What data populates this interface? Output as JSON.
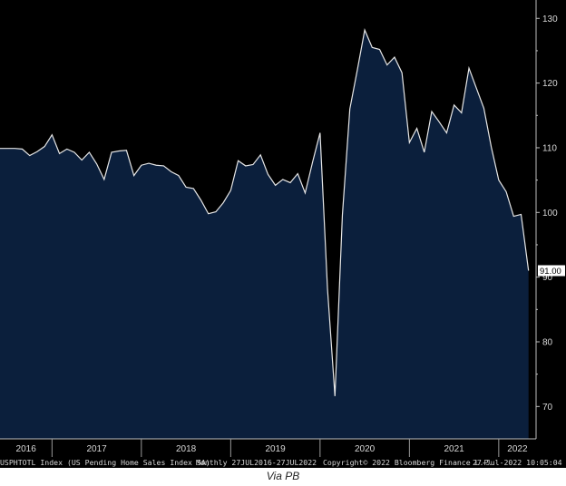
{
  "chart_data": {
    "type": "area",
    "x_tick_labels": [
      "2016",
      "2017",
      "2018",
      "2019",
      "2020",
      "2021",
      "2022"
    ],
    "y_tick_labels": [
      "130",
      "120",
      "110",
      "100",
      "90",
      "80",
      "70"
    ],
    "ylim": [
      65,
      132
    ],
    "grid": false,
    "last_value_label": "91.00",
    "colors": {
      "background": "#000000",
      "area_fill": "#0b1f3c",
      "line": "#e6e6e6",
      "text": "#d8d8d8",
      "last_value_bg": "#ffffff"
    },
    "series": [
      {
        "values": [
          {
            "x": "2016-07",
            "y": 109.9
          },
          {
            "x": "2016-08",
            "y": 109.9
          },
          {
            "x": "2016-09",
            "y": 109.8
          },
          {
            "x": "2016-10",
            "y": 108.8
          },
          {
            "x": "2016-11",
            "y": 109.4
          },
          {
            "x": "2016-12",
            "y": 110.2
          },
          {
            "x": "2017-01",
            "y": 112.0
          },
          {
            "x": "2017-02",
            "y": 109.1
          },
          {
            "x": "2017-03",
            "y": 109.8
          },
          {
            "x": "2017-04",
            "y": 109.3
          },
          {
            "x": "2017-05",
            "y": 108.1
          },
          {
            "x": "2017-06",
            "y": 109.3
          },
          {
            "x": "2017-07",
            "y": 107.5
          },
          {
            "x": "2017-08",
            "y": 105.1
          },
          {
            "x": "2017-09",
            "y": 109.3
          },
          {
            "x": "2017-10",
            "y": 109.5
          },
          {
            "x": "2017-11",
            "y": 109.6
          },
          {
            "x": "2017-12",
            "y": 105.7
          },
          {
            "x": "2018-01",
            "y": 107.3
          },
          {
            "x": "2018-02",
            "y": 107.6
          },
          {
            "x": "2018-03",
            "y": 107.3
          },
          {
            "x": "2018-04",
            "y": 107.2
          },
          {
            "x": "2018-05",
            "y": 106.3
          },
          {
            "x": "2018-06",
            "y": 105.7
          },
          {
            "x": "2018-07",
            "y": 103.9
          },
          {
            "x": "2018-08",
            "y": 103.7
          },
          {
            "x": "2018-09",
            "y": 101.9
          },
          {
            "x": "2018-10",
            "y": 99.8
          },
          {
            "x": "2018-11",
            "y": 100.1
          },
          {
            "x": "2018-12",
            "y": 101.5
          },
          {
            "x": "2019-01",
            "y": 103.4
          },
          {
            "x": "2019-02",
            "y": 108.0
          },
          {
            "x": "2019-03",
            "y": 107.2
          },
          {
            "x": "2019-04",
            "y": 107.4
          },
          {
            "x": "2019-05",
            "y": 108.9
          },
          {
            "x": "2019-06",
            "y": 105.9
          },
          {
            "x": "2019-07",
            "y": 104.2
          },
          {
            "x": "2019-08",
            "y": 105.1
          },
          {
            "x": "2019-09",
            "y": 104.6
          },
          {
            "x": "2019-10",
            "y": 106.0
          },
          {
            "x": "2019-11",
            "y": 103.0
          },
          {
            "x": "2019-12",
            "y": 107.8
          },
          {
            "x": "2020-01",
            "y": 112.3
          },
          {
            "x": "2020-02",
            "y": 88.2
          },
          {
            "x": "2020-03",
            "y": 71.6
          },
          {
            "x": "2020-04",
            "y": 99.6
          },
          {
            "x": "2020-05",
            "y": 116.0
          },
          {
            "x": "2020-06",
            "y": 122.0
          },
          {
            "x": "2020-07",
            "y": 128.2
          },
          {
            "x": "2020-08",
            "y": 125.5
          },
          {
            "x": "2020-09",
            "y": 125.2
          },
          {
            "x": "2020-10",
            "y": 122.8
          },
          {
            "x": "2020-11",
            "y": 124.0
          },
          {
            "x": "2020-12",
            "y": 121.6
          },
          {
            "x": "2021-01",
            "y": 110.8
          },
          {
            "x": "2021-02",
            "y": 113.0
          },
          {
            "x": "2021-03",
            "y": 109.3
          },
          {
            "x": "2021-04",
            "y": 115.6
          },
          {
            "x": "2021-05",
            "y": 114.0
          },
          {
            "x": "2021-06",
            "y": 112.3
          },
          {
            "x": "2021-07",
            "y": 116.6
          },
          {
            "x": "2021-08",
            "y": 115.4
          },
          {
            "x": "2021-09",
            "y": 122.3
          },
          {
            "x": "2021-10",
            "y": 119.2
          },
          {
            "x": "2021-11",
            "y": 116.1
          },
          {
            "x": "2021-12",
            "y": 110.1
          },
          {
            "x": "2022-01",
            "y": 105.0
          },
          {
            "x": "2022-02",
            "y": 103.2
          },
          {
            "x": "2022-03",
            "y": 99.4
          },
          {
            "x": "2022-04",
            "y": 99.7
          },
          {
            "x": "2022-05",
            "y": 91.0
          }
        ]
      }
    ]
  },
  "footer": {
    "security": "USPHTOTL Index (US Pending Home Sales Index SA)",
    "range": "Monthly 27JUL2016-27JUL2022",
    "copyright": "Copyright© 2022 Bloomberg Finance L.P.",
    "timestamp": "27-Jul-2022 10:05:04"
  },
  "caption": "Via PB"
}
